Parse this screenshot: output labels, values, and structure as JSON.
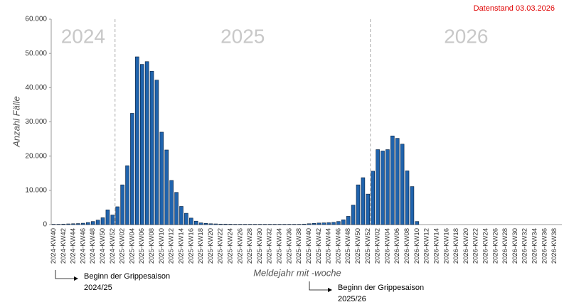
{
  "chart_data": {
    "type": "bar",
    "note": "Datenstand 03.03.2026",
    "xlabel": "Meldejahr mit -woche",
    "ylabel": "Anzahl Fälle",
    "year_labels": [
      "2024",
      "2025",
      "2026"
    ],
    "season_starts": [
      [
        "Beginn der Grippesaison",
        "2024/25"
      ],
      [
        "Beginn der Grippesaison",
        "2025/26"
      ]
    ],
    "categories": [
      "2024-KW40",
      null,
      "2024-KW42",
      null,
      "2024-KW44",
      null,
      "2024-KW46",
      null,
      "2024-KW48",
      null,
      "2024-KW50",
      null,
      "2024-KW52",
      null,
      "2025-KW02",
      null,
      "2025-KW04",
      null,
      "2025-KW06",
      null,
      "2025-KW08",
      null,
      "2025-KW10",
      null,
      "2025-KW12",
      null,
      "2025-KW14",
      null,
      "2025-KW16",
      null,
      "2025-KW18",
      null,
      "2025-KW20",
      null,
      "2025-KW22",
      null,
      "2025-KW24",
      null,
      "2025-KW26",
      null,
      "2025-KW28",
      null,
      "2025-KW30",
      null,
      "2025-KW32",
      null,
      "2025-KW34",
      null,
      "2025-KW36",
      null,
      "2025-KW38",
      null,
      "2025-KW40",
      null,
      "2025-KW42",
      null,
      "2025-KW44",
      null,
      "2025-KW46",
      null,
      "2025-KW48",
      null,
      "2025-KW50",
      null,
      "2025-KW52",
      null,
      "2026-KW02",
      null,
      "2026-KW04",
      null,
      "2026-KW06",
      null,
      "2026-KW08",
      null,
      "2026-KW10",
      null,
      "2026-KW12",
      null,
      "2026-KW14",
      null,
      "2026-KW16",
      null,
      "2026-KW18",
      null,
      "2026-KW20",
      null,
      "2026-KW22",
      null,
      "2026-KW24",
      null,
      "2026-KW26",
      null,
      "2026-KW28",
      null,
      "2026-KW30",
      null,
      "2026-KW32",
      null,
      "2026-KW34",
      null,
      "2026-KW36",
      null,
      "2026-KW38",
      null
    ],
    "values": [
      100,
      100,
      150,
      200,
      250,
      300,
      400,
      600,
      900,
      1300,
      2000,
      4300,
      2800,
      5200,
      11600,
      17200,
      32500,
      49000,
      46800,
      47600,
      44800,
      42200,
      27000,
      21800,
      12900,
      9400,
      5300,
      3300,
      1900,
      1000,
      500,
      350,
      250,
      200,
      150,
      150,
      120,
      100,
      100,
      100,
      100,
      100,
      100,
      100,
      100,
      100,
      100,
      100,
      100,
      100,
      100,
      150,
      250,
      350,
      450,
      500,
      550,
      650,
      900,
      1400,
      2400,
      5700,
      11600,
      13700,
      8900,
      15600,
      21900,
      21500,
      21900,
      25900,
      25200,
      23500,
      15700,
      11100,
      900,
      null,
      null,
      null,
      null,
      null,
      null,
      null,
      null,
      null,
      null,
      null,
      null,
      null,
      null,
      null,
      null,
      null,
      null,
      null,
      null,
      null,
      null,
      null,
      null,
      null,
      null,
      null,
      null,
      null
    ],
    "color": "#1f63ad",
    "ylim": [
      0,
      60000
    ],
    "yticks": [
      0,
      {
        "value": 10000,
        "label": "10.000"
      },
      {
        "value": 20000,
        "label": "20.000"
      },
      {
        "value": 30000,
        "label": "30.000"
      },
      {
        "value": 40000,
        "label": "40.000"
      },
      {
        "value": 50000,
        "label": "50.000"
      },
      {
        "value": 60000,
        "label": "60.000"
      }
    ],
    "grid": false
  }
}
